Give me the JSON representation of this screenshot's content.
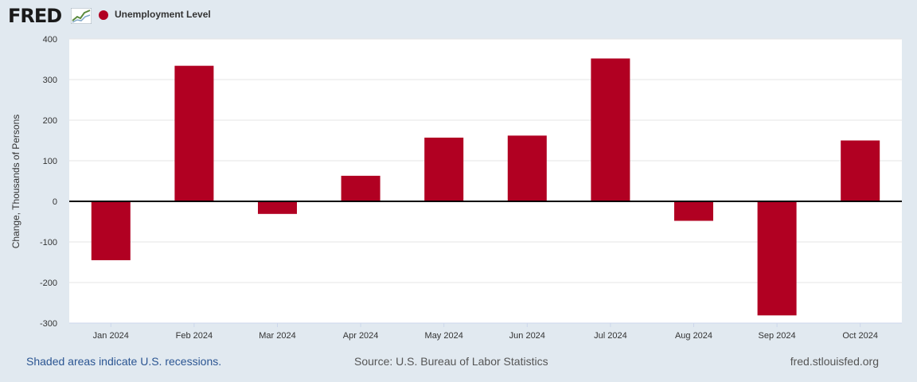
{
  "header": {
    "logo_text": "FRED",
    "legend_label": "Unemployment Level",
    "series_color": "#b10022"
  },
  "footer": {
    "recession_note": "Shaded areas indicate U.S. recessions.",
    "source": "Source: U.S. Bureau of Labor Statistics",
    "site": "fred.stlouisfed.org"
  },
  "chart_data": {
    "type": "bar",
    "title": "",
    "xlabel": "",
    "ylabel": "Change, Thousands of Persons",
    "categories": [
      "Jan 2024",
      "Feb 2024",
      "Mar 2024",
      "Apr 2024",
      "May 2024",
      "Jun 2024",
      "Jul 2024",
      "Aug 2024",
      "Sep 2024",
      "Oct 2024"
    ],
    "series": [
      {
        "name": "Unemployment Level",
        "values": [
          -145,
          334,
          -31,
          63,
          157,
          162,
          352,
          -48,
          -281,
          150
        ]
      }
    ],
    "ylim": [
      -300,
      400
    ],
    "yticks": [
      400,
      300,
      200,
      100,
      0,
      -100,
      -200,
      -300
    ],
    "grid": true,
    "legend": "top-left"
  }
}
